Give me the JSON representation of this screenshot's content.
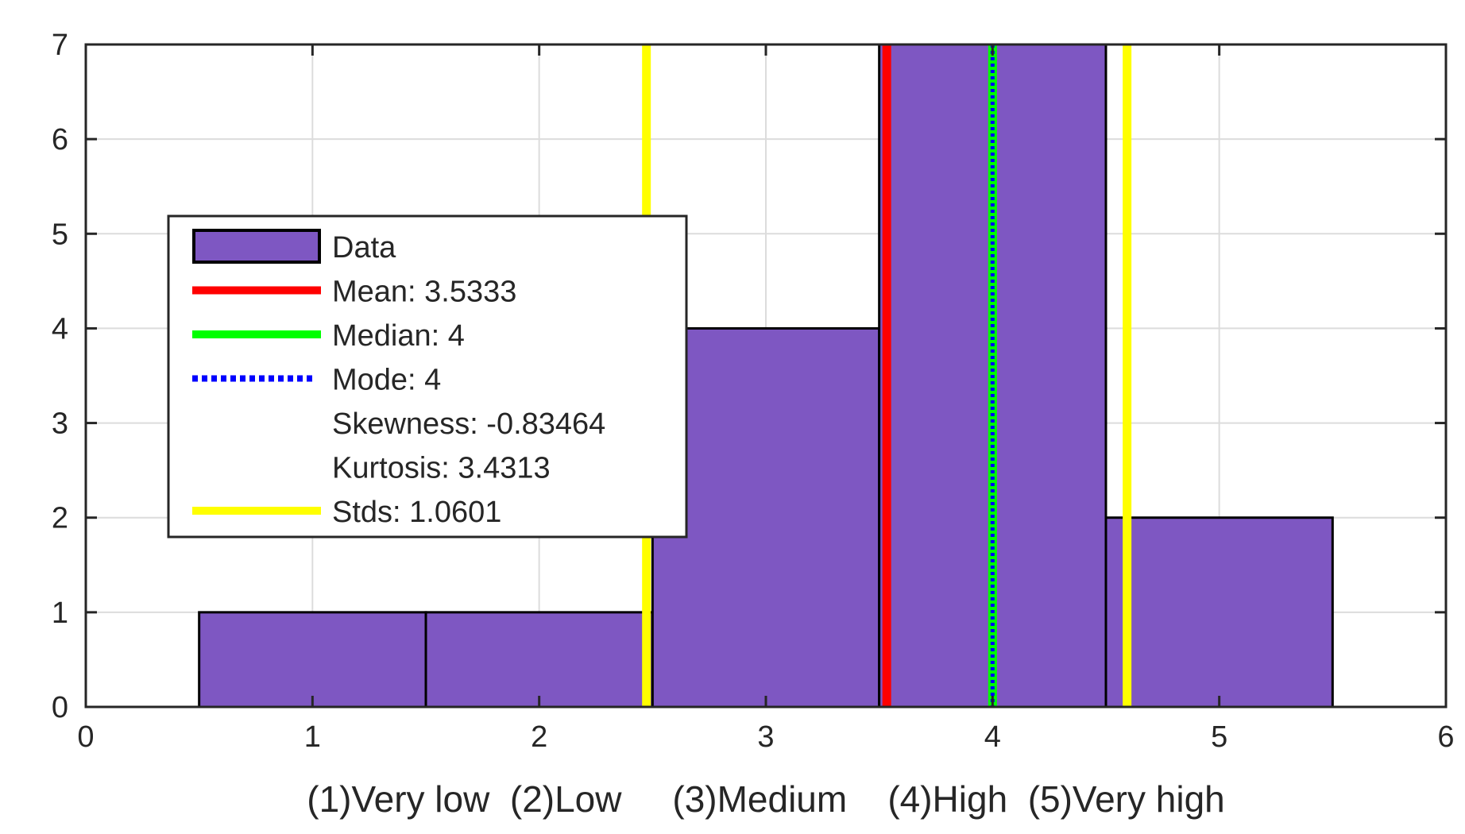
{
  "chart_data": {
    "type": "bar",
    "subtype": "histogram",
    "xlabel": "(1)Very low  (2)Low     (3)Medium    (4)High  (5)Very high",
    "ylabel": "",
    "xlim": [
      0,
      6
    ],
    "ylim": [
      0,
      7
    ],
    "xticks": [
      0,
      1,
      2,
      3,
      4,
      5,
      6
    ],
    "yticks": [
      0,
      1,
      2,
      3,
      4,
      5,
      6,
      7
    ],
    "grid": true,
    "bins": [
      {
        "left": 0.5,
        "right": 1.5,
        "value": 1
      },
      {
        "left": 1.5,
        "right": 2.5,
        "value": 1
      },
      {
        "left": 2.5,
        "right": 3.5,
        "value": 4
      },
      {
        "left": 3.5,
        "right": 4.5,
        "value": 7
      },
      {
        "left": 4.5,
        "right": 5.5,
        "value": 2
      }
    ],
    "stats": {
      "mean": 3.5333,
      "median": 4,
      "mode": 4,
      "skewness": -0.83464,
      "kurtosis": 3.4313,
      "std": 1.0601,
      "std_lines": [
        2.4732,
        4.5934
      ]
    },
    "legend": {
      "position": "center-left",
      "entries": [
        {
          "key": "data",
          "label": "Data",
          "style": "patch",
          "color": "#7e57c2"
        },
        {
          "key": "mean",
          "label": "Mean: 3.5333",
          "style": "line",
          "color": "#ff0000"
        },
        {
          "key": "median",
          "label": "Median: 4",
          "style": "line",
          "color": "#00ff00"
        },
        {
          "key": "mode",
          "label": "Mode: 4",
          "style": "dotted",
          "color": "#0000ff"
        },
        {
          "key": "skewness",
          "label": "Skewness: -0.83464",
          "style": "none",
          "color": ""
        },
        {
          "key": "kurtosis",
          "label": "Kurtosis: 3.4313",
          "style": "none",
          "color": ""
        },
        {
          "key": "stds",
          "label": "Stds: 1.0601",
          "style": "line",
          "color": "#ffff00"
        }
      ]
    },
    "colors": {
      "bar_fill": "#7e57c2",
      "bar_edge": "#000000",
      "mean": "#ff0000",
      "median": "#00ff00",
      "mode": "#0000ff",
      "std": "#ffff00",
      "grid": "#dcdcdc",
      "axis": "#262626"
    }
  }
}
